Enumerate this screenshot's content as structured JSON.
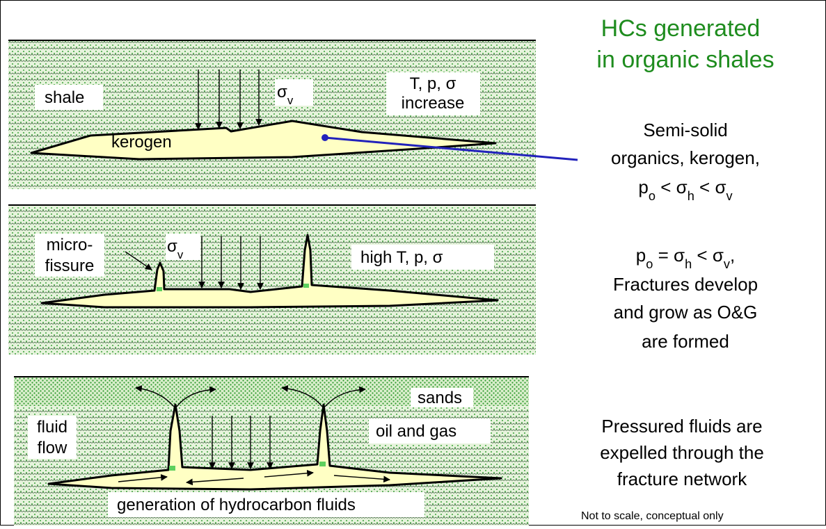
{
  "title": [
    "HCs generated",
    "in organic shales"
  ],
  "panels": [
    {
      "rock": "shale",
      "stress": [
        [
          "σ",
          "v"
        ]
      ],
      "conditions": [
        "T, p, σ",
        "increase"
      ],
      "kerogen": "kerogen"
    },
    {
      "fissure": [
        "micro-",
        "fissure"
      ],
      "stress": [
        [
          "σ",
          "v"
        ]
      ],
      "conditions": "high T, p, σ"
    },
    {
      "sands": "sands",
      "flow": [
        "fluid",
        "flow"
      ],
      "fluids": "oil and gas",
      "generation": "generation of hydrocarbon fluids"
    }
  ],
  "descriptions": [
    {
      "lines": [
        "Semi-solid",
        "organics, kerogen,"
      ],
      "formula": [
        [
          "p",
          "o"
        ],
        [
          " < σ",
          "h"
        ],
        [
          " < σ",
          "v"
        ]
      ]
    },
    {
      "formula": [
        [
          "p",
          "o"
        ],
        [
          " = σ",
          "h"
        ],
        [
          " < σ",
          "v"
        ],
        [
          ",",
          ""
        ]
      ],
      "lines": [
        "Fractures develop",
        "and grow as O&G",
        "are formed"
      ]
    },
    {
      "lines": [
        "Pressured fluids are",
        "expelled through the",
        "fracture network"
      ]
    }
  ],
  "footnote": "Not to scale, conceptual only"
}
